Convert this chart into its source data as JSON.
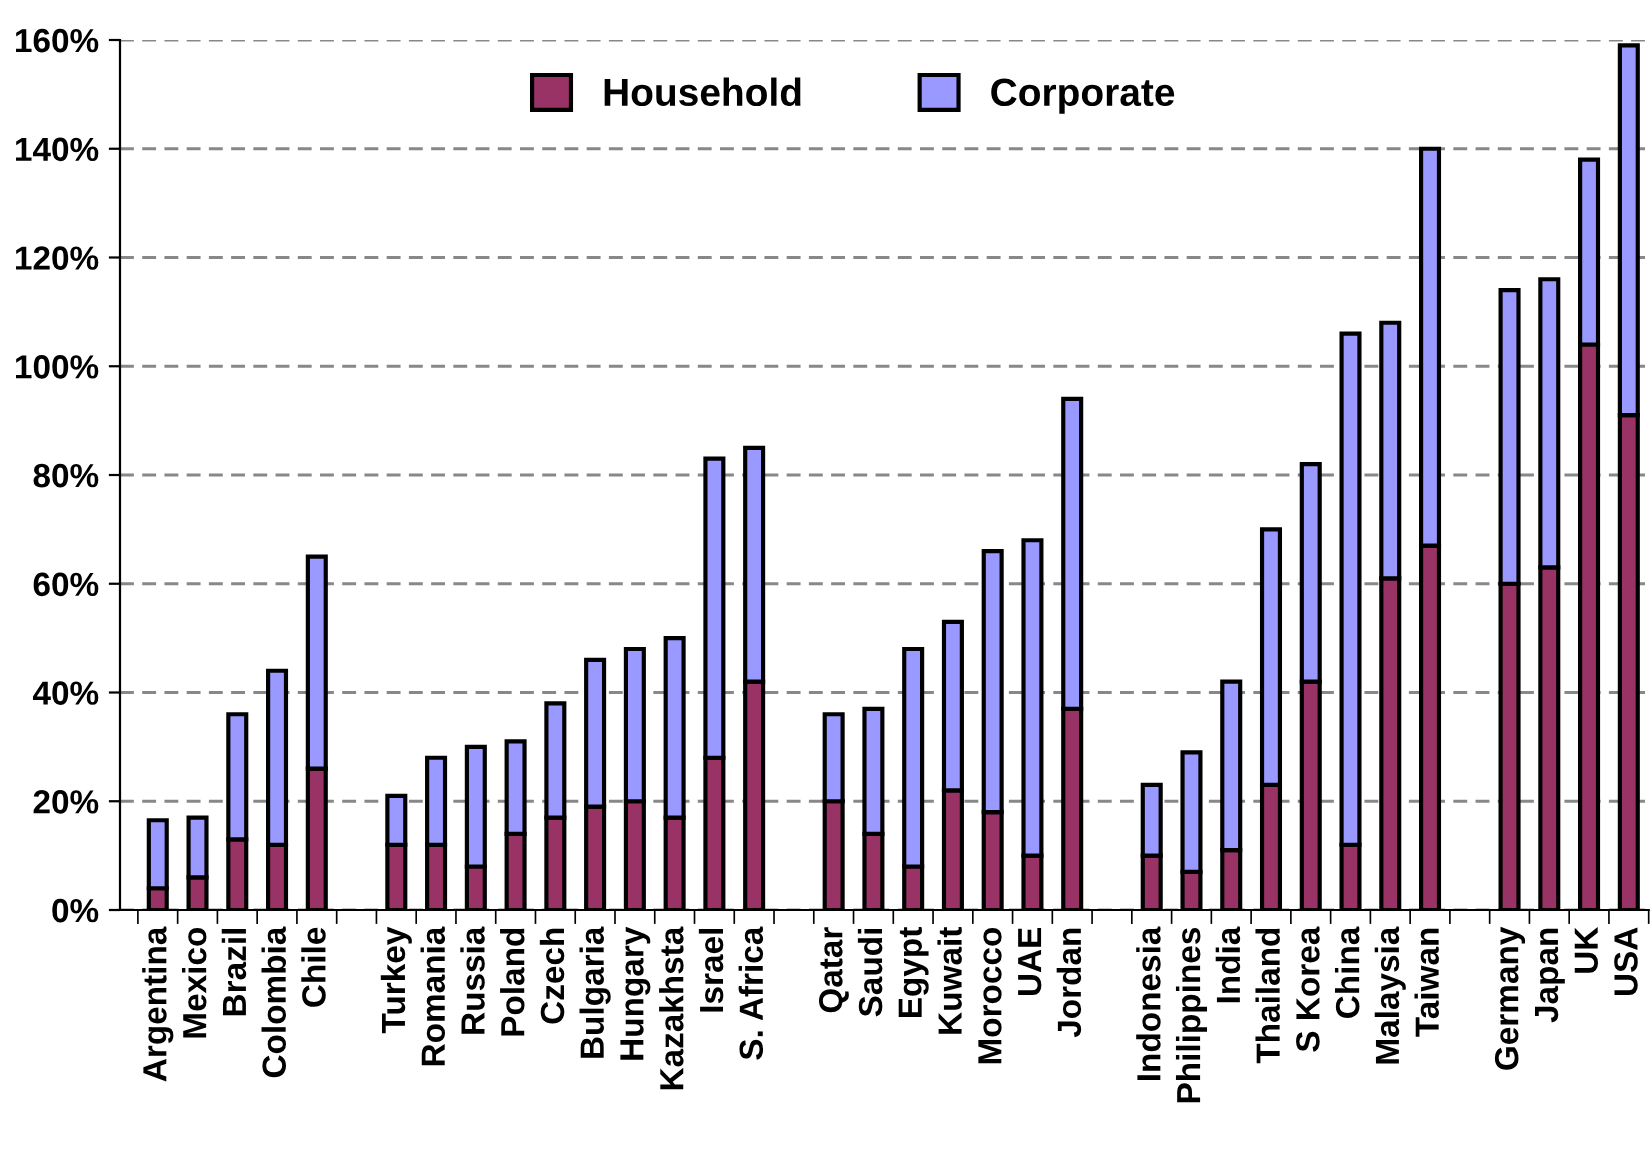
{
  "chart_data": {
    "type": "bar",
    "stacked": true,
    "categories": [
      "Argentina",
      "Mexico",
      "Brazil",
      "Colombia",
      "Chile",
      null,
      "Turkey",
      "Romania",
      "Russia",
      "Poland",
      "Czech",
      "Bulgaria",
      "Hungary",
      "Kazakhsta",
      "Israel",
      "S. Africa",
      null,
      "Qatar",
      "Saudi",
      "Egypt",
      "Kuwait",
      "Morocco",
      "UAE",
      "Jordan",
      null,
      "Indonesia",
      "Philippines",
      "India",
      "Thailand",
      "S Korea",
      "China",
      "Malaysia",
      "Taiwan",
      null,
      "Germany",
      "Japan",
      "UK",
      "USA"
    ],
    "series": [
      {
        "name": "Household",
        "color": "#993366",
        "values": [
          4,
          6,
          13,
          12,
          26,
          null,
          12,
          12,
          8,
          14,
          17,
          19,
          20,
          17,
          28,
          42,
          null,
          20,
          14,
          8,
          22,
          18,
          10,
          37,
          null,
          10,
          7,
          11,
          23,
          42,
          12,
          61,
          67,
          null,
          60,
          63,
          104,
          91
        ]
      },
      {
        "name": "Corporate",
        "color": "#9999ff",
        "values": [
          12.5,
          11,
          23,
          32,
          39,
          null,
          9,
          16,
          22,
          17,
          21,
          27,
          28,
          33,
          55,
          43,
          null,
          16,
          23,
          40,
          31,
          48,
          58,
          57,
          null,
          13,
          22,
          31,
          47,
          40,
          94,
          47,
          73,
          null,
          54,
          53,
          34,
          68
        ]
      }
    ],
    "ylim": [
      0,
      160
    ],
    "yticks": [
      {
        "value": 0,
        "label": "0%"
      },
      {
        "value": 20,
        "label": "20%"
      },
      {
        "value": 40,
        "label": "40%"
      },
      {
        "value": 60,
        "label": "60%"
      },
      {
        "value": 80,
        "label": "80%"
      },
      {
        "value": 100,
        "label": "100%"
      },
      {
        "value": 120,
        "label": "120%"
      },
      {
        "value": 140,
        "label": "140%"
      },
      {
        "value": 160,
        "label": "160%"
      }
    ],
    "grid": "y",
    "legend": "top"
  }
}
